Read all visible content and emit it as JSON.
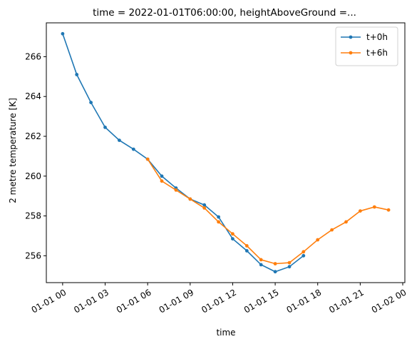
{
  "chart_data": {
    "type": "line",
    "title": "time = 2022-01-01T06:00:00, heightAboveGround =...",
    "xlabel": "time",
    "ylabel": "2 metre temperature [K]",
    "x_unit": "hours since 2022-01-01 00:00",
    "xlim": [
      -1.15,
      24.15
    ],
    "ylim": [
      254.65,
      267.7
    ],
    "x_ticks": [
      0,
      3,
      6,
      9,
      12,
      15,
      18,
      21,
      24
    ],
    "x_tick_labels": [
      "01-01 00",
      "01-01 03",
      "01-01 06",
      "01-01 09",
      "01-01 12",
      "01-01 15",
      "01-01 18",
      "01-01 21",
      "01-02 00"
    ],
    "y_ticks": [
      256,
      258,
      260,
      262,
      264,
      266
    ],
    "y_tick_labels": [
      "256",
      "258",
      "260",
      "262",
      "264",
      "266"
    ],
    "grid": false,
    "legend_position": "top-right",
    "series": [
      {
        "name": "t+0h",
        "color": "#1f77b4",
        "x": [
          0,
          1,
          2,
          3,
          4,
          5,
          6,
          7,
          8,
          9,
          10,
          11,
          12,
          13,
          14,
          15,
          16,
          17
        ],
        "values": [
          267.15,
          265.1,
          263.7,
          262.45,
          261.8,
          261.35,
          260.85,
          260.0,
          259.4,
          258.85,
          258.55,
          257.95,
          256.85,
          256.25,
          255.55,
          255.2,
          255.45,
          256.0
        ]
      },
      {
        "name": "t+6h",
        "color": "#ff7f0e",
        "x": [
          6,
          7,
          8,
          9,
          10,
          11,
          12,
          13,
          14,
          15,
          16,
          17,
          18,
          19,
          20,
          21,
          22,
          23
        ],
        "values": [
          260.85,
          259.75,
          259.3,
          258.85,
          258.4,
          257.7,
          257.1,
          256.5,
          255.8,
          255.6,
          255.65,
          256.2,
          256.8,
          257.3,
          257.7,
          258.25,
          258.45,
          258.3
        ]
      }
    ]
  }
}
